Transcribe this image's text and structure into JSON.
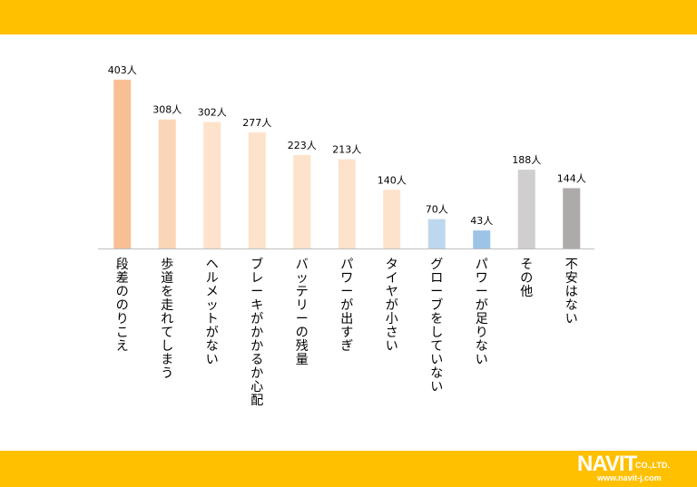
{
  "colors": {
    "band": "#FFC000",
    "axis": "#BFBFBF",
    "text": "#000000"
  },
  "logo": {
    "wordmark": "NAVIT",
    "company": "CO.,LTD.",
    "url": "www.navit-j.com"
  },
  "chart_data": {
    "type": "bar",
    "title": "",
    "xlabel": "",
    "ylabel": "",
    "ylim": [
      0,
      420
    ],
    "grid": false,
    "unit_suffix": "人",
    "categories": [
      "段差ののりこえ",
      "歩道を走れてしまう",
      "ヘルメットがない",
      "ブレーキがかかるか心配",
      "バッテリーの残量",
      "パワーが出すぎ",
      "タイヤが小さい",
      "グローブをしていない",
      "パワーが足りない",
      "その他",
      "不安はない"
    ],
    "values": [
      403,
      308,
      302,
      277,
      223,
      213,
      140,
      70,
      43,
      188,
      144
    ],
    "value_labels": [
      "403人",
      "308人",
      "302人",
      "277人",
      "223人",
      "213人",
      "140人",
      "70人",
      "43人",
      "188人",
      "144人"
    ],
    "bar_colors": [
      "#F8BF94",
      "#FBD5B5",
      "#FDE2CC",
      "#FDE2CC",
      "#FDE2CC",
      "#FDE2CC",
      "#FDE2CC",
      "#BDD7EE",
      "#9DC3E6",
      "#D0CECE",
      "#AEAAAA"
    ]
  }
}
